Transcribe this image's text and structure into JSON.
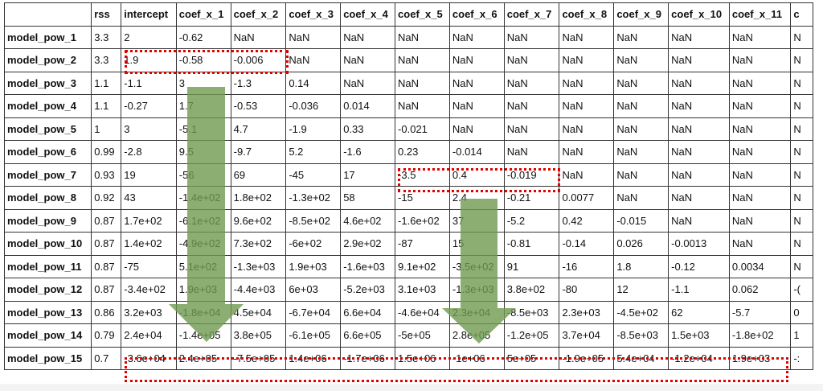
{
  "table": {
    "columns": [
      "",
      "rss",
      "intercept",
      "coef_x_1",
      "coef_x_2",
      "coef_x_3",
      "coef_x_4",
      "coef_x_5",
      "coef_x_6",
      "coef_x_7",
      "coef_x_8",
      "coef_x_9",
      "coef_x_10",
      "coef_x_11",
      "c"
    ],
    "rows": [
      {
        "label": "model_pow_1",
        "values": [
          "3.3",
          "2",
          "-0.62",
          "NaN",
          "NaN",
          "NaN",
          "NaN",
          "NaN",
          "NaN",
          "NaN",
          "NaN",
          "NaN",
          "NaN",
          "N"
        ]
      },
      {
        "label": "model_pow_2",
        "values": [
          "3.3",
          "1.9",
          "-0.58",
          "-0.006",
          "NaN",
          "NaN",
          "NaN",
          "NaN",
          "NaN",
          "NaN",
          "NaN",
          "NaN",
          "NaN",
          "N"
        ]
      },
      {
        "label": "model_pow_3",
        "values": [
          "1.1",
          "-1.1",
          "3",
          "-1.3",
          "0.14",
          "NaN",
          "NaN",
          "NaN",
          "NaN",
          "NaN",
          "NaN",
          "NaN",
          "NaN",
          "N"
        ]
      },
      {
        "label": "model_pow_4",
        "values": [
          "1.1",
          "-0.27",
          "1.7",
          "-0.53",
          "-0.036",
          "0.014",
          "NaN",
          "NaN",
          "NaN",
          "NaN",
          "NaN",
          "NaN",
          "NaN",
          "N"
        ]
      },
      {
        "label": "model_pow_5",
        "values": [
          "1",
          "3",
          "-5.1",
          "4.7",
          "-1.9",
          "0.33",
          "-0.021",
          "NaN",
          "NaN",
          "NaN",
          "NaN",
          "NaN",
          "NaN",
          "N"
        ]
      },
      {
        "label": "model_pow_6",
        "values": [
          "0.99",
          "-2.8",
          "9.5",
          "-9.7",
          "5.2",
          "-1.6",
          "0.23",
          "-0.014",
          "NaN",
          "NaN",
          "NaN",
          "NaN",
          "NaN",
          "N"
        ]
      },
      {
        "label": "model_pow_7",
        "values": [
          "0.93",
          "19",
          "-56",
          "69",
          "-45",
          "17",
          "-3.5",
          "0.4",
          "-0.019",
          "NaN",
          "NaN",
          "NaN",
          "NaN",
          "N"
        ]
      },
      {
        "label": "model_pow_8",
        "values": [
          "0.92",
          "43",
          "-1.4e+02",
          "1.8e+02",
          "-1.3e+02",
          "58",
          "-15",
          "2.4",
          "-0.21",
          "0.0077",
          "NaN",
          "NaN",
          "NaN",
          "N"
        ]
      },
      {
        "label": "model_pow_9",
        "values": [
          "0.87",
          "1.7e+02",
          "-6.1e+02",
          "9.6e+02",
          "-8.5e+02",
          "4.6e+02",
          "-1.6e+02",
          "37",
          "-5.2",
          "0.42",
          "-0.015",
          "NaN",
          "NaN",
          "N"
        ]
      },
      {
        "label": "model_pow_10",
        "values": [
          "0.87",
          "1.4e+02",
          "-4.9e+02",
          "7.3e+02",
          "-6e+02",
          "2.9e+02",
          "-87",
          "15",
          "-0.81",
          "-0.14",
          "0.026",
          "-0.0013",
          "NaN",
          "N"
        ]
      },
      {
        "label": "model_pow_11",
        "values": [
          "0.87",
          "-75",
          "5.1e+02",
          "-1.3e+03",
          "1.9e+03",
          "-1.6e+03",
          "9.1e+02",
          "-3.5e+02",
          "91",
          "-16",
          "1.8",
          "-0.12",
          "0.0034",
          "N"
        ]
      },
      {
        "label": "model_pow_12",
        "values": [
          "0.87",
          "-3.4e+02",
          "1.9e+03",
          "-4.4e+03",
          "6e+03",
          "-5.2e+03",
          "3.1e+03",
          "-1.3e+03",
          "3.8e+02",
          "-80",
          "12",
          "-1.1",
          "0.062",
          "-("
        ]
      },
      {
        "label": "model_pow_13",
        "values": [
          "0.86",
          "3.2e+03",
          "-1.8e+04",
          "4.5e+04",
          "-6.7e+04",
          "6.6e+04",
          "-4.6e+04",
          "2.3e+04",
          "-8.5e+03",
          "2.3e+03",
          "-4.5e+02",
          "62",
          "-5.7",
          "0"
        ]
      },
      {
        "label": "model_pow_14",
        "values": [
          "0.79",
          "2.4e+04",
          "-1.4e+05",
          "3.8e+05",
          "-6.1e+05",
          "6.6e+05",
          "-5e+05",
          "2.8e+05",
          "-1.2e+05",
          "3.7e+04",
          "-8.5e+03",
          "1.5e+03",
          "-1.8e+02",
          "1"
        ]
      },
      {
        "label": "model_pow_15",
        "values": [
          "0.7",
          "-3.6e+04",
          "2.4e+05",
          "-7.5e+05",
          "1.4e+06",
          "-1.7e+06",
          "1.5e+06",
          "-1e+06",
          "5e+05",
          "-1.9e+05",
          "5.4e+04",
          "-1.2e+04",
          "1.9e+03",
          "-:"
        ]
      }
    ]
  },
  "annotations": {
    "highlight_color": "#e00000",
    "arrow_color": "#6f9a4f",
    "arrows": [
      "arrow-down-icon",
      "arrow-down-icon"
    ]
  }
}
